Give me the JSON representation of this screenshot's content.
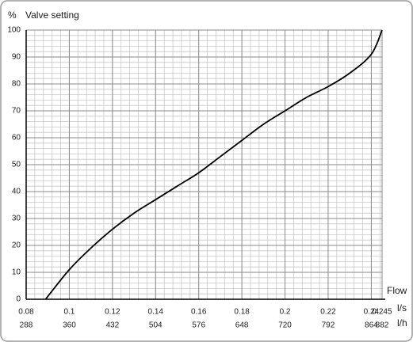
{
  "chart_data": {
    "type": "line",
    "y_unit": "%",
    "title": "Valve setting",
    "x_label": "Flow",
    "x_unit": "l/s",
    "x2_unit": "l/h",
    "x": [
      0.089,
      0.1,
      0.11,
      0.12,
      0.13,
      0.14,
      0.15,
      0.16,
      0.17,
      0.18,
      0.19,
      0.2,
      0.21,
      0.22,
      0.23,
      0.24,
      0.245
    ],
    "values": [
      0,
      11,
      19,
      26,
      32,
      37,
      42,
      47,
      53,
      59,
      65,
      70,
      75,
      79,
      84,
      91,
      100
    ],
    "color": "#000000",
    "xlim": [
      0.08,
      0.245
    ],
    "xticks": [
      {
        "value": 0.08,
        "label": "0.08"
      },
      0.1,
      0.12,
      0.14,
      0.16,
      0.18,
      0.2,
      0.22,
      0.24,
      0.245
    ],
    "x2lim": [
      288,
      882
    ],
    "x2ticks": [
      288,
      360,
      432,
      504,
      576,
      648,
      720,
      792,
      864,
      882
    ],
    "ylim": [
      0,
      100
    ],
    "yticks": [
      0,
      10,
      20,
      30,
      40,
      50,
      60,
      70,
      80,
      90,
      100
    ],
    "grid": true,
    "minor_grid": true
  }
}
